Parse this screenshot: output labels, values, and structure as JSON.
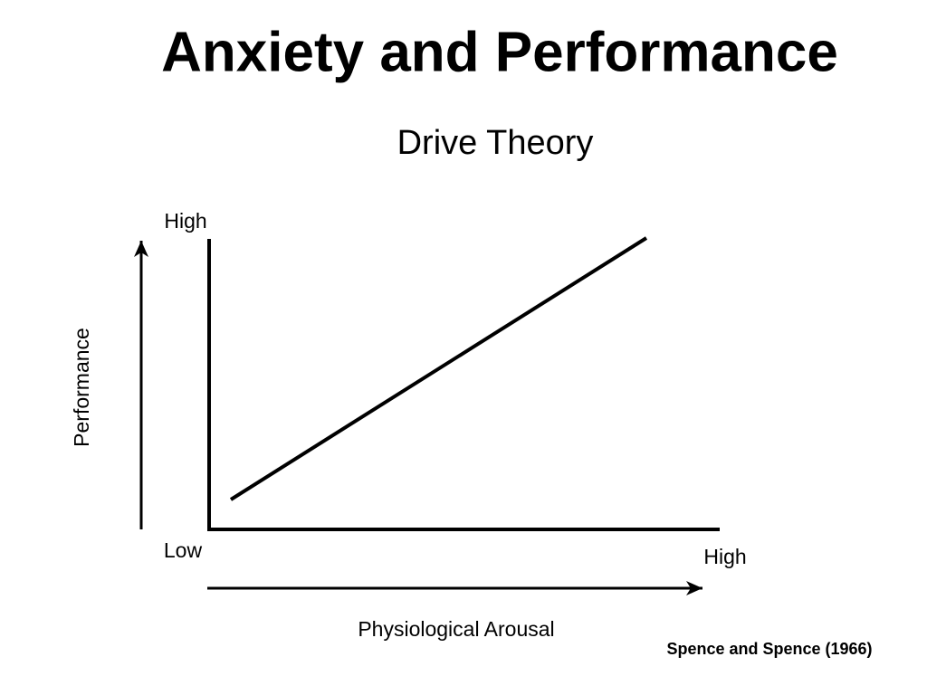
{
  "header": {
    "title": "Anxiety and Performance",
    "subtitle": "Drive Theory"
  },
  "diagram": {
    "y_axis_title": "Performance",
    "y_high": "High",
    "y_low": "Low",
    "x_high": "High",
    "x_axis_title": "Physiological Arousal"
  },
  "footer": {
    "citation": "Spence and Spence (1966)"
  }
}
